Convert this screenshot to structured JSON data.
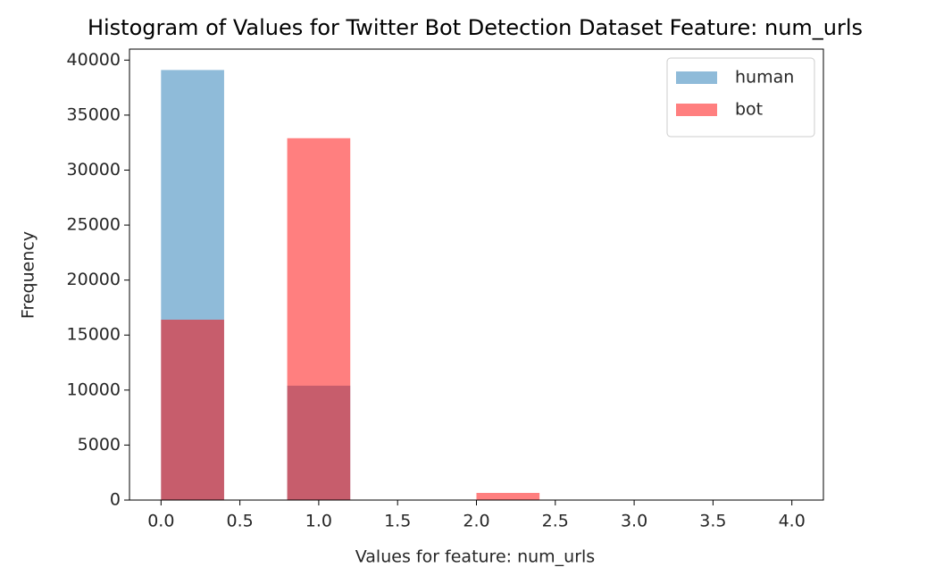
{
  "chart_data": {
    "type": "histogram",
    "title": "Histogram of Values for Twitter Bot Detection Dataset Feature: num_urls",
    "x_label": "Values for feature: num_urls",
    "y_label": "Frequency",
    "bins": [
      0,
      0.4,
      0.8,
      1.2,
      1.6,
      2.0,
      2.4,
      2.8,
      3.2,
      3.6,
      4.0
    ],
    "series": [
      {
        "name": "human",
        "color": "#1f77b4",
        "values": [
          39100,
          0,
          10400,
          0,
          0,
          0,
          0,
          0,
          0,
          0
        ]
      },
      {
        "name": "bot",
        "color": "#ff0000",
        "values": [
          16400,
          0,
          32900,
          0,
          0,
          650,
          0,
          0,
          0,
          0
        ]
      }
    ],
    "opacity": 0.5,
    "xlim": [
      -0.2,
      4.2
    ],
    "ylim": [
      0,
      41000
    ],
    "xticks": [
      {
        "value": 0,
        "label": "0.0"
      },
      0.5,
      {
        "value": 1,
        "label": "1.0"
      },
      1.5,
      {
        "value": 2,
        "label": "2.0"
      },
      2.5,
      {
        "value": 3,
        "label": "3.0"
      },
      3.5,
      {
        "value": 4,
        "label": "4.0"
      }
    ],
    "yticks": [
      0,
      5000,
      10000,
      15000,
      20000,
      25000,
      30000,
      35000,
      40000
    ],
    "legend": "upper right",
    "grid": false
  }
}
